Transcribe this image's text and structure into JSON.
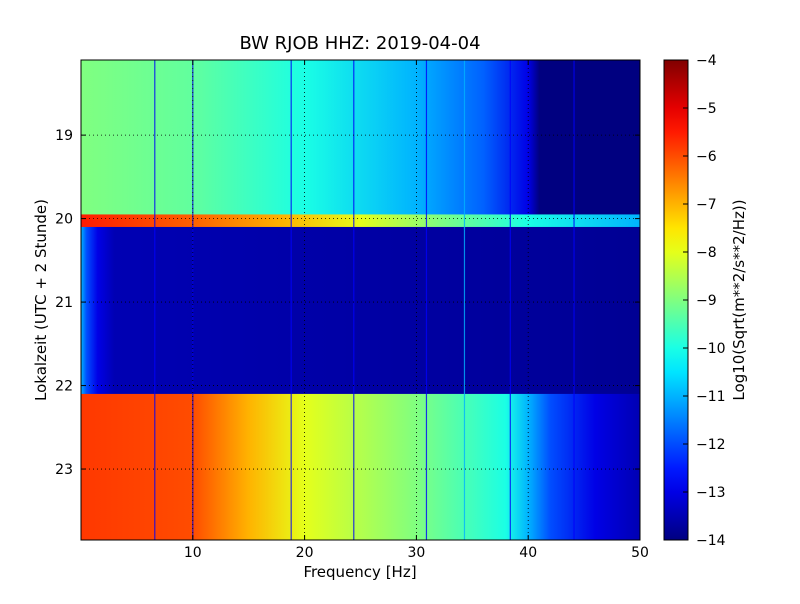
{
  "chart_data": {
    "type": "heatmap",
    "title": "BW RJOB HHZ: 2019-04-04",
    "xlabel": "Frequency [Hz]",
    "ylabel": "Lokalzeit (UTC + 2 Stunde)",
    "xlim": [
      0,
      50
    ],
    "ylim": [
      18.1,
      23.85
    ],
    "y_inverted": true,
    "x_ticks": [
      10,
      20,
      30,
      40,
      50
    ],
    "y_ticks": [
      19,
      20,
      21,
      22,
      23
    ],
    "grid": true,
    "colormap": "jet",
    "colorbar": {
      "label": "Log10(Sqrt(m**2/s**2/Hz))",
      "min": -14,
      "max": -4,
      "ticks": [
        -4,
        -5,
        -6,
        -7,
        -8,
        -9,
        -10,
        -11,
        -12,
        -13,
        -14
      ]
    },
    "bands": [
      {
        "y_range": [
          18.1,
          19.95
        ],
        "profile": [
          [
            0,
            -9.0
          ],
          [
            10,
            -9.3
          ],
          [
            20,
            -10.0
          ],
          [
            30,
            -11.0
          ],
          [
            36,
            -11.8
          ],
          [
            40,
            -13.0
          ],
          [
            41,
            -14.0
          ],
          [
            50,
            -14.0
          ]
        ]
      },
      {
        "y_range": [
          19.95,
          20.1
        ],
        "profile": [
          [
            0,
            -5.5
          ],
          [
            10,
            -6.2
          ],
          [
            18,
            -7.0
          ],
          [
            25,
            -8.0
          ],
          [
            32,
            -9.0
          ],
          [
            40,
            -10.0
          ],
          [
            50,
            -11.0
          ]
        ]
      },
      {
        "y_range": [
          20.1,
          22.1
        ],
        "profile": [
          [
            0,
            -11.0
          ],
          [
            0.5,
            -12.0
          ],
          [
            1.5,
            -13.0
          ],
          [
            3,
            -13.5
          ],
          [
            50,
            -13.8
          ]
        ]
      },
      {
        "y_range": [
          22.1,
          23.85
        ],
        "profile": [
          [
            0,
            -5.8
          ],
          [
            10,
            -6.0
          ],
          [
            15,
            -7.0
          ],
          [
            20,
            -8.0
          ],
          [
            30,
            -9.0
          ],
          [
            38,
            -10.0
          ],
          [
            40,
            -11.0
          ],
          [
            42,
            -12.0
          ],
          [
            46,
            -13.0
          ],
          [
            50,
            -13.5
          ]
        ]
      }
    ],
    "vertical_lines": [
      {
        "x": 34.3,
        "level": -11.0
      },
      {
        "x": 10.0,
        "level": -13.0
      },
      {
        "x": 6.6,
        "level": -12.8
      },
      {
        "x": 18.8,
        "level": -12.8
      },
      {
        "x": 24.4,
        "level": -12.8
      },
      {
        "x": 30.9,
        "level": -12.8
      },
      {
        "x": 38.4,
        "level": -12.8
      },
      {
        "x": 44.1,
        "level": -12.8
      }
    ]
  }
}
